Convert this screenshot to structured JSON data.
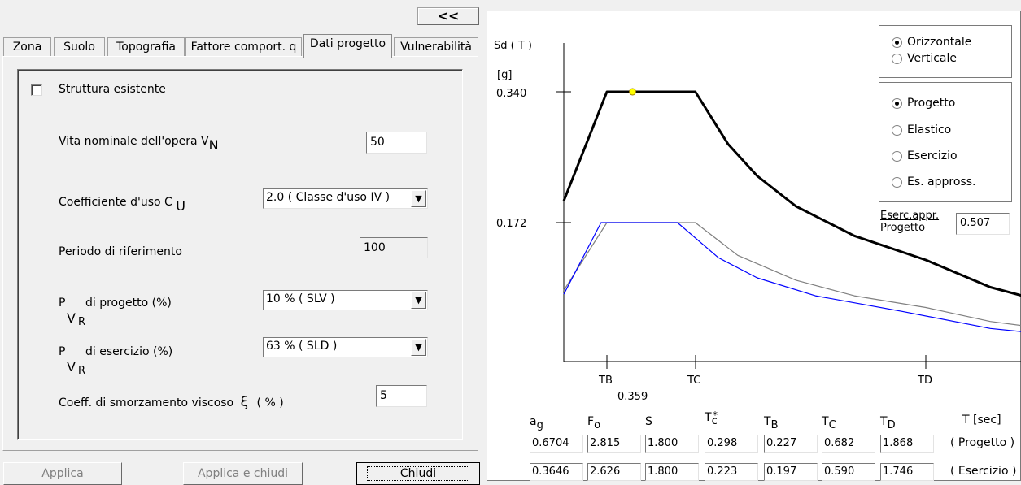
{
  "toolbar": {
    "collapse_label": "<<"
  },
  "tabs": [
    "Zona",
    "Suolo",
    "Topografia",
    "Fattore comport. q",
    "Dati progetto",
    "Vulnerabilità"
  ],
  "form": {
    "existing_structure_label": "Struttura  esistente",
    "existing_structure_checked": false,
    "nominal_life_label": "Vita nominale dell'opera  V",
    "nominal_life_sub": "N",
    "nominal_life_value": "50",
    "use_coeff_label": "Coefficiente d'uso C",
    "use_coeff_sub": "U",
    "use_coeff_value": "2.0  ( Classe d'uso IV )",
    "reference_period_label": "Periodo di riferimento",
    "reference_period_value": "100",
    "pvr_design_label_main": "P",
    "pvr_design_label_sub": "V",
    "pvr_design_label_subsub": "R",
    "pvr_design_label_rest": "di progetto    (%)",
    "pvr_design_value": "10 %    ( SLV )",
    "pvr_service_label_main": "P",
    "pvr_service_label_sub": "V",
    "pvr_service_label_subsub": "R",
    "pvr_service_label_rest": "di esercizio    (%)",
    "pvr_service_value": "63 %    ( SLD )",
    "damping_label": "Coeff. di smorzamento viscoso",
    "damping_symbol": "ξ",
    "damping_unit": "( % )",
    "damping_value": "5"
  },
  "buttons": {
    "apply": "Applica",
    "apply_close": "Applica  e chiudi",
    "close": "Chiudi"
  },
  "direction": {
    "options": [
      "Orizzontale",
      "Verticale"
    ],
    "selected": 0
  },
  "spectrum_type": {
    "options": [
      "Progetto",
      "Elastico",
      "Esercizio",
      "Es. appross."
    ],
    "selected": 0
  },
  "esercappr": {
    "label_line1": "Eserc.appr.",
    "label_line2": "Progetto",
    "value": "0.507"
  },
  "chart_data": {
    "type": "line",
    "ylabel": "Sd ( T )",
    "yunit": "[g]",
    "y_ticks": [
      "0.340",
      "0.172"
    ],
    "x_ticks": [
      "TB",
      "TC",
      "TD"
    ],
    "marker_label": "0.359",
    "series": [
      {
        "color": "#000000",
        "points": [
          [
            0.0,
            0.2
          ],
          [
            0.227,
            0.34
          ],
          [
            0.682,
            0.34
          ],
          [
            0.85,
            0.273
          ],
          [
            1.0,
            0.232
          ],
          [
            1.2,
            0.193
          ],
          [
            1.5,
            0.155
          ],
          [
            1.868,
            0.124
          ],
          [
            2.2,
            0.089
          ],
          [
            2.5,
            0.069
          ],
          [
            2.6,
            0.064
          ]
        ]
      },
      {
        "color": "#0000ff",
        "points": [
          [
            0.0,
            0.08
          ],
          [
            0.197,
            0.172
          ],
          [
            0.59,
            0.172
          ],
          [
            0.8,
            0.127
          ],
          [
            1.0,
            0.101
          ],
          [
            1.3,
            0.078
          ],
          [
            1.746,
            0.058
          ],
          [
            2.2,
            0.036
          ],
          [
            2.6,
            0.026
          ]
        ]
      },
      {
        "color": "#808080",
        "points": [
          [
            0.0,
            0.085
          ],
          [
            0.227,
            0.172
          ],
          [
            0.682,
            0.172
          ],
          [
            0.9,
            0.13
          ],
          [
            1.2,
            0.098
          ],
          [
            1.5,
            0.078
          ],
          [
            1.868,
            0.063
          ],
          [
            2.2,
            0.045
          ],
          [
            2.6,
            0.032
          ]
        ]
      }
    ],
    "marker": {
      "x": 0.359,
      "y": 0.34
    }
  },
  "table": {
    "headers": [
      "ag",
      "Fo",
      "S",
      "T*c",
      "TB",
      "TC",
      "TD"
    ],
    "units": "T [sec]",
    "rows": [
      {
        "label": "( Progetto )",
        "values": [
          "0.6704",
          "2.815",
          "1.800",
          "0.298",
          "0.227",
          "0.682",
          "1.868"
        ]
      },
      {
        "label": "( Esercizio )",
        "values": [
          "0.3646",
          "2.626",
          "1.800",
          "0.223",
          "0.197",
          "0.590",
          "1.746"
        ]
      }
    ]
  }
}
